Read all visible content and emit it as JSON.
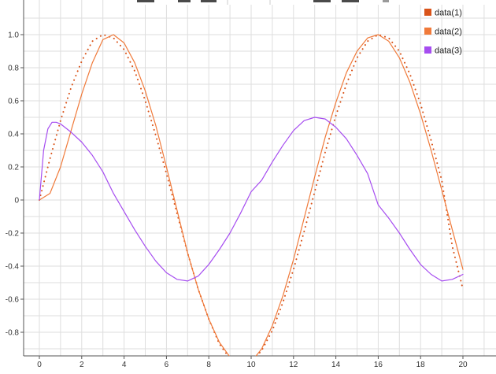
{
  "chart_data": {
    "type": "line",
    "title": "",
    "xlabel": "",
    "ylabel": "",
    "xlim": [
      -0.6,
      21.5
    ],
    "ylim": [
      -0.97,
      1.18
    ],
    "grid": true,
    "legend": "top-right",
    "x_ticks": [
      0,
      2,
      4,
      6,
      8,
      10,
      12,
      14,
      16,
      18,
      20
    ],
    "x_tick_labels": [
      "0",
      "2",
      "4",
      "6",
      "8",
      "10",
      "12",
      "14",
      "16",
      "18",
      "20"
    ],
    "y_ticks": [
      1.0,
      0.8,
      0.6,
      0.4,
      0.2,
      0,
      -0.2,
      -0.4,
      -0.6,
      -0.8
    ],
    "y_tick_labels": [
      "1.0",
      "0.8",
      "0.6",
      "0.4",
      "0.2",
      "0",
      "-0.2",
      "-0.4",
      "-0.6",
      "-0.8"
    ],
    "series": [
      {
        "name": "data(1)",
        "color": "#d95319",
        "style": "dotted",
        "x": [
          0,
          0.5,
          1,
          1.5,
          2,
          2.5,
          3,
          3.5,
          4,
          4.5,
          5,
          5.5,
          6,
          6.5,
          7,
          7.5,
          8,
          8.5,
          9,
          9.5,
          10,
          10.5,
          11,
          11.5,
          12,
          12.5,
          13,
          13.5,
          14,
          14.5,
          15,
          15.5,
          16,
          16.5,
          17,
          17.5,
          18,
          18.5,
          19,
          19.5,
          20
        ],
        "y": [
          0,
          0.25,
          0.48,
          0.68,
          0.84,
          0.96,
          1.0,
          0.98,
          0.91,
          0.78,
          0.6,
          0.39,
          0.16,
          -0.08,
          -0.32,
          -0.54,
          -0.72,
          -0.87,
          -0.96,
          -1.0,
          -0.98,
          -0.91,
          -0.79,
          -0.62,
          -0.42,
          -0.19,
          0.05,
          0.29,
          0.51,
          0.7,
          0.86,
          0.96,
          1.0,
          0.98,
          0.9,
          0.76,
          0.58,
          0.36,
          0.12,
          -0.28,
          -0.54
        ]
      },
      {
        "name": "data(2)",
        "color": "#f07a3a",
        "style": "solid",
        "x": [
          0,
          0.5,
          1,
          1.5,
          2,
          2.5,
          3,
          3.5,
          4,
          4.5,
          5,
          5.5,
          6,
          6.5,
          7,
          7.5,
          8,
          8.5,
          9,
          9.5,
          10,
          10.5,
          11,
          11.5,
          12,
          12.5,
          13,
          13.5,
          14,
          14.5,
          15,
          15.5,
          16,
          16.5,
          17,
          17.5,
          18,
          18.5,
          19,
          19.5,
          20
        ],
        "y": [
          0,
          0.04,
          0.2,
          0.42,
          0.64,
          0.83,
          0.97,
          1.0,
          0.95,
          0.83,
          0.66,
          0.45,
          0.2,
          -0.06,
          -0.32,
          -0.54,
          -0.72,
          -0.86,
          -0.95,
          -1.0,
          -0.98,
          -0.9,
          -0.76,
          -0.58,
          -0.36,
          -0.11,
          0.14,
          0.38,
          0.59,
          0.77,
          0.9,
          0.98,
          1.0,
          0.96,
          0.86,
          0.71,
          0.52,
          0.3,
          0.06,
          -0.18,
          -0.42
        ]
      },
      {
        "name": "data(3)",
        "color": "#a64df0",
        "style": "solid",
        "x": [
          0,
          0.2,
          0.4,
          0.6,
          0.8,
          1,
          1.5,
          2,
          2.5,
          3,
          3.5,
          4,
          4.5,
          5,
          5.5,
          6,
          6.5,
          7,
          7.5,
          8,
          8.5,
          9,
          9.5,
          10,
          10.5,
          11,
          11.5,
          12,
          12.5,
          13,
          13.5,
          14,
          14.5,
          15,
          15.5,
          16,
          16.5,
          17,
          17.5,
          18,
          18.5,
          19,
          19.5,
          20
        ],
        "y": [
          0,
          0.3,
          0.43,
          0.47,
          0.47,
          0.46,
          0.41,
          0.35,
          0.27,
          0.17,
          0.04,
          -0.07,
          -0.18,
          -0.28,
          -0.37,
          -0.44,
          -0.48,
          -0.49,
          -0.46,
          -0.39,
          -0.3,
          -0.2,
          -0.08,
          0.05,
          0.12,
          0.23,
          0.33,
          0.42,
          0.48,
          0.5,
          0.49,
          0.44,
          0.37,
          0.27,
          0.16,
          -0.03,
          -0.11,
          -0.2,
          -0.3,
          -0.39,
          -0.45,
          -0.49,
          -0.48,
          -0.45
        ]
      }
    ]
  }
}
